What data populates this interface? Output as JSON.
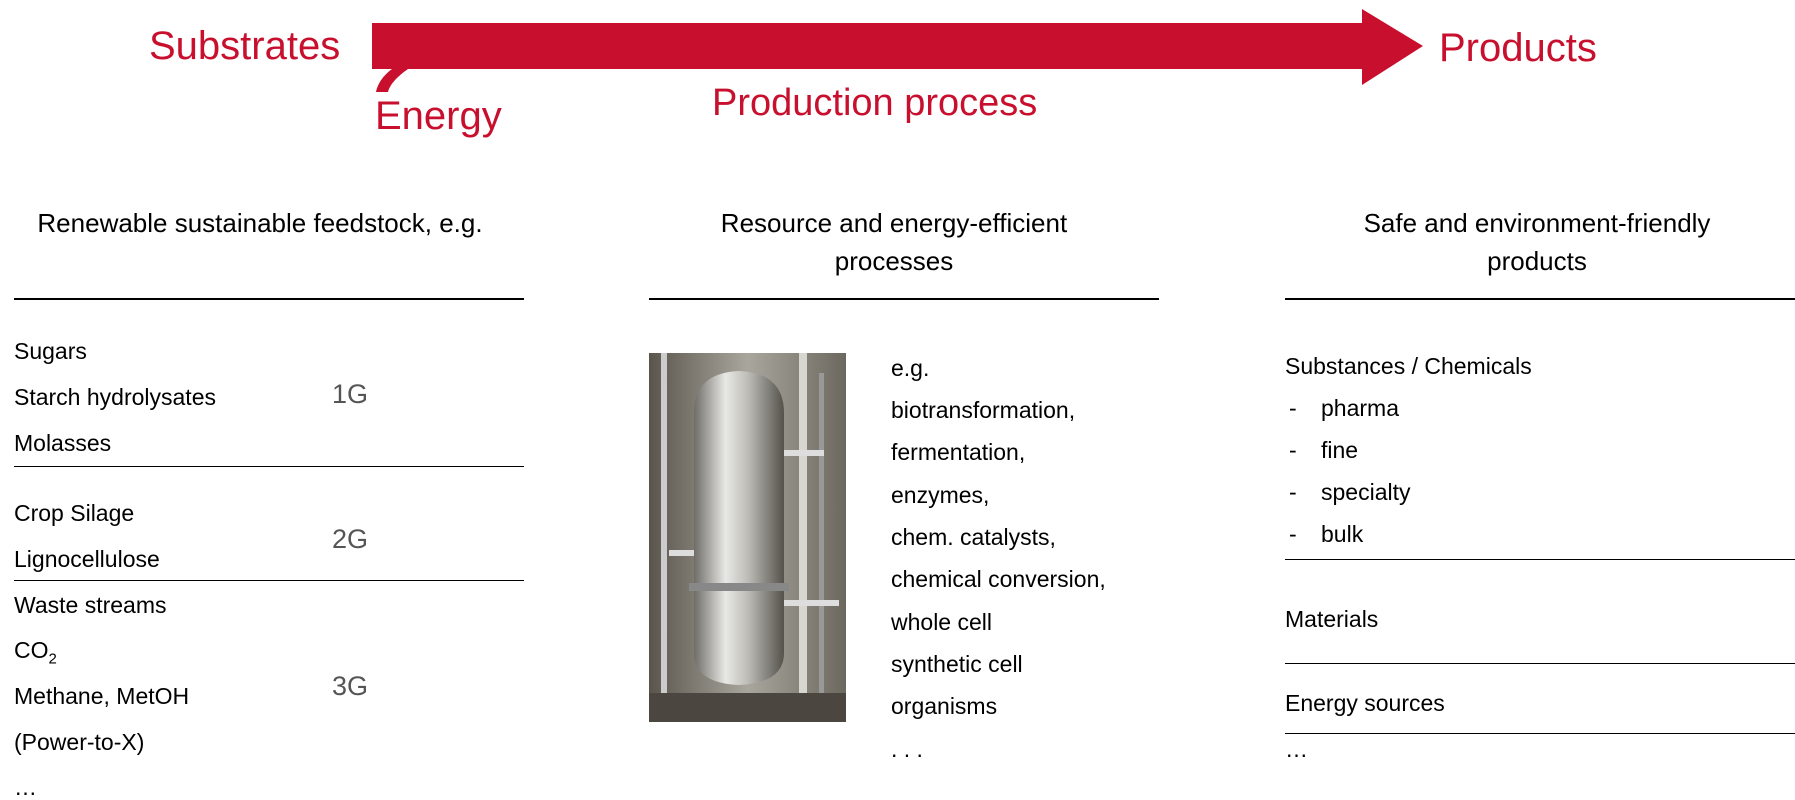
{
  "header": {
    "substrates": "Substrates",
    "products": "Products",
    "energy": "Energy",
    "process": "Production process"
  },
  "left": {
    "title": "Renewable sustainable feedstock, e.g.",
    "groups": [
      {
        "label": "1G",
        "items": [
          "Sugars",
          "Starch hydrolysates",
          "Molasses"
        ]
      },
      {
        "label": "2G",
        "items": [
          "Crop Silage",
          "Lignocellulose"
        ]
      },
      {
        "label": "3G",
        "items": [
          "Waste streams",
          {
            "text": "CO",
            "subscript": "2"
          },
          "Methane, MetOH",
          "(Power-to-X)"
        ]
      }
    ],
    "more": "…"
  },
  "middle": {
    "title": "Resource and energy-efficient processes",
    "items": [
      "e.g.",
      "biotransformation,",
      "fermentation,",
      "enzymes,",
      "chem. catalysts,",
      "chemical conversion,",
      "whole cell",
      "synthetic cell",
      "organisms",
      ". . ."
    ]
  },
  "right": {
    "title": "Safe and environment-friendly products",
    "groups": [
      {
        "heading": "Substances / Chemicals",
        "items": [
          "pharma",
          "fine",
          "specialty",
          "bulk"
        ]
      },
      {
        "heading": "Materials"
      },
      {
        "heading": "Energy sources"
      }
    ],
    "more": "…"
  }
}
